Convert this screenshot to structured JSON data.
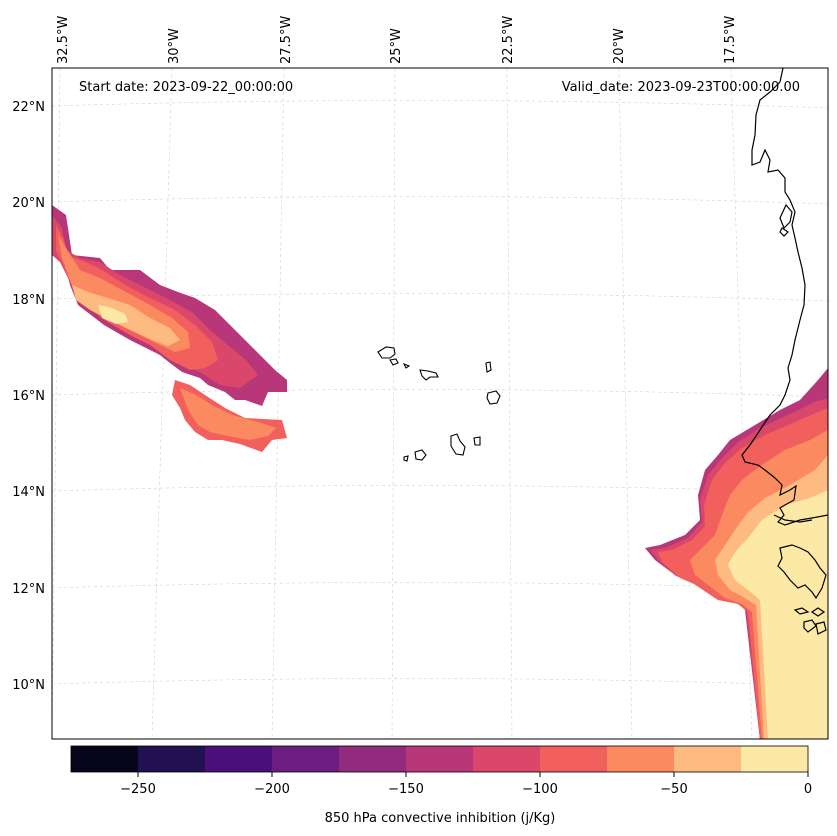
{
  "map": {
    "start_date_label": "Start date: 2023-09-22_00:00:00",
    "valid_date_label": "Valid_date: 2023-09-23T00:00:00.00",
    "longitude_labels": [
      "32.5°W",
      "30°W",
      "27.5°W",
      "25°W",
      "22.5°W",
      "20°W",
      "17.5°W"
    ],
    "latitude_labels": [
      "22°N",
      "20°N",
      "18°N",
      "16°N",
      "14°N",
      "12°N",
      "10°N"
    ]
  },
  "colorbar": {
    "label": "850 hPa convective inhibition (j/Kg)",
    "tick_labels": [
      "−250",
      "−200",
      "−150",
      "−100",
      "−50",
      "0"
    ],
    "levels": [
      -275,
      -250,
      -225,
      -200,
      -175,
      -150,
      -125,
      -100,
      -75,
      -50,
      -25,
      0
    ],
    "colors": [
      "#06051a",
      "#221150",
      "#4a0f7a",
      "#6d1d81",
      "#922a7e",
      "#b73779",
      "#db476a",
      "#f1605d",
      "#fc8a61",
      "#febb81",
      "#fde9a6"
    ]
  }
}
